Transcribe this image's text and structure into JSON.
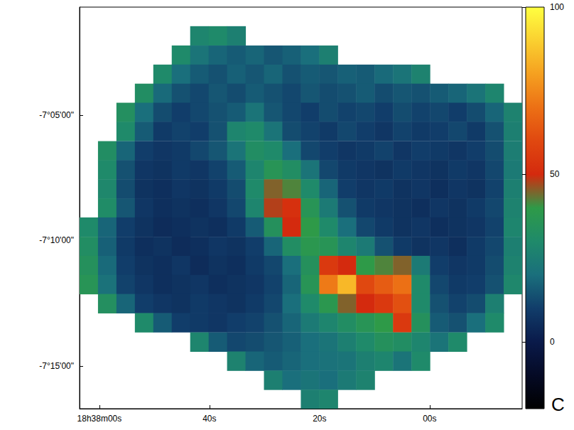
{
  "chart_data": {
    "type": "heatmap",
    "x": [
      121.93,
      118.58,
      115.23,
      111.88,
      108.53,
      105.18,
      101.83,
      98.48,
      95.13,
      91.78,
      88.43,
      85.08,
      81.73,
      78.38,
      75.03,
      71.68,
      68.33,
      64.98,
      61.63,
      58.28,
      54.93,
      51.58,
      48.23,
      44.88
    ],
    "y": [
      -421.08,
      -421.84,
      -422.61,
      -423.37,
      -424.13,
      -424.89,
      -425.65,
      -426.42,
      -427.18,
      -427.94,
      -428.7,
      -429.46,
      -430.23,
      -430.99,
      -431.75,
      -432.51,
      -433.27,
      -434.04,
      -434.8,
      -435.56,
      -436.32
    ],
    "cells": [
      [
        null,
        null,
        null,
        null,
        null,
        null,
        null,
        null,
        null,
        null,
        null,
        null,
        null,
        null,
        null,
        null,
        null,
        null,
        null,
        null,
        null,
        null,
        null,
        null
      ],
      [
        null,
        null,
        null,
        null,
        null,
        null,
        28,
        30,
        26,
        null,
        null,
        null,
        null,
        null,
        null,
        null,
        null,
        null,
        null,
        null,
        null,
        null,
        null,
        null
      ],
      [
        null,
        null,
        null,
        null,
        null,
        30,
        22,
        18,
        16,
        18,
        15,
        17,
        20,
        26,
        null,
        null,
        null,
        null,
        null,
        null,
        null,
        null,
        null,
        null
      ],
      [
        null,
        null,
        null,
        null,
        30,
        20,
        16,
        14,
        17,
        15,
        18,
        14,
        16,
        15,
        17,
        16,
        19,
        22,
        27,
        null,
        null,
        null,
        null,
        null
      ],
      [
        null,
        null,
        null,
        32,
        19,
        14,
        12,
        15,
        13,
        16,
        14,
        12,
        15,
        13,
        14,
        16,
        13,
        15,
        14,
        16,
        18,
        22,
        28,
        null
      ],
      [
        null,
        null,
        33,
        20,
        13,
        10,
        12,
        14,
        16,
        22,
        15,
        12,
        10,
        13,
        11,
        12,
        10,
        13,
        11,
        12,
        10,
        13,
        18,
        27
      ],
      [
        null,
        null,
        30,
        16,
        9,
        11,
        10,
        14,
        28,
        30,
        22,
        13,
        11,
        9,
        12,
        10,
        8,
        11,
        9,
        10,
        12,
        9,
        14,
        26
      ],
      [
        null,
        32,
        18,
        10,
        8,
        9,
        12,
        15,
        22,
        32,
        30,
        20,
        12,
        10,
        8,
        9,
        11,
        8,
        10,
        9,
        8,
        10,
        13,
        25
      ],
      [
        null,
        30,
        14,
        8,
        7,
        9,
        8,
        11,
        16,
        28,
        36,
        32,
        22,
        12,
        9,
        8,
        7,
        9,
        8,
        7,
        9,
        8,
        12,
        24
      ],
      [
        null,
        29,
        13,
        7,
        6,
        8,
        7,
        9,
        13,
        30,
        45,
        42,
        30,
        18,
        10,
        8,
        9,
        7,
        8,
        6,
        8,
        7,
        11,
        26
      ],
      [
        null,
        31,
        15,
        8,
        6,
        7,
        6,
        8,
        12,
        28,
        48,
        52,
        36,
        24,
        14,
        9,
        8,
        7,
        6,
        8,
        7,
        9,
        12,
        27
      ],
      [
        30,
        18,
        10,
        7,
        5,
        6,
        7,
        6,
        9,
        16,
        34,
        50,
        40,
        30,
        20,
        12,
        9,
        7,
        8,
        6,
        7,
        8,
        11,
        28
      ],
      [
        32,
        17,
        9,
        6,
        7,
        5,
        6,
        8,
        7,
        10,
        18,
        32,
        38,
        36,
        28,
        24,
        14,
        9,
        7,
        8,
        6,
        9,
        12,
        26
      ],
      [
        34,
        19,
        10,
        7,
        6,
        8,
        5,
        7,
        6,
        9,
        12,
        20,
        34,
        55,
        50,
        40,
        42,
        45,
        24,
        10,
        8,
        9,
        13,
        27
      ],
      [
        36,
        21,
        11,
        8,
        6,
        7,
        8,
        6,
        7,
        8,
        11,
        18,
        36,
        72,
        85,
        60,
        65,
        70,
        30,
        12,
        9,
        10,
        14,
        29
      ],
      [
        null,
        33,
        18,
        10,
        8,
        7,
        9,
        8,
        7,
        9,
        12,
        20,
        30,
        38,
        45,
        50,
        55,
        62,
        30,
        14,
        11,
        13,
        26,
        null
      ],
      [
        null,
        null,
        null,
        30,
        16,
        10,
        9,
        8,
        10,
        11,
        14,
        18,
        24,
        28,
        32,
        36,
        40,
        55,
        34,
        16,
        14,
        20,
        30,
        null
      ],
      [
        null,
        null,
        null,
        null,
        null,
        null,
        28,
        16,
        12,
        13,
        15,
        17,
        20,
        22,
        26,
        30,
        34,
        32,
        28,
        22,
        30,
        null,
        null,
        null
      ],
      [
        null,
        null,
        null,
        null,
        null,
        null,
        null,
        null,
        27,
        18,
        16,
        18,
        20,
        21,
        22,
        26,
        28,
        22,
        30,
        null,
        null,
        null,
        null,
        null
      ],
      [
        null,
        null,
        null,
        null,
        null,
        null,
        null,
        null,
        null,
        null,
        26,
        20,
        22,
        20,
        24,
        27,
        null,
        null,
        null,
        null,
        null,
        null,
        null,
        null
      ],
      [
        null,
        null,
        null,
        null,
        null,
        null,
        null,
        null,
        null,
        null,
        null,
        null,
        26,
        28,
        null,
        null,
        null,
        null,
        null,
        null,
        null,
        null,
        null,
        null
      ]
    ],
    "xlim": [
      123.6,
      43.2
    ],
    "ylim": [
      -436.7,
      -420.7
    ],
    "xticks": [
      {
        "value": 120,
        "label": "18h38m00s"
      },
      {
        "value": 100,
        "label": "40s"
      },
      {
        "value": 80,
        "label": "20s"
      },
      {
        "value": 60,
        "label": "00s"
      }
    ],
    "yticks": [
      {
        "value": -435,
        "label": "-7°15'00\""
      },
      {
        "value": -430,
        "label": "-7°10'00\""
      },
      {
        "value": -425,
        "label": "-7°05'00\""
      }
    ],
    "colorbar": {
      "range": [
        -20,
        100
      ],
      "ticks": [
        0,
        50,
        100
      ]
    },
    "annotations": [
      "C"
    ],
    "grid": false
  }
}
